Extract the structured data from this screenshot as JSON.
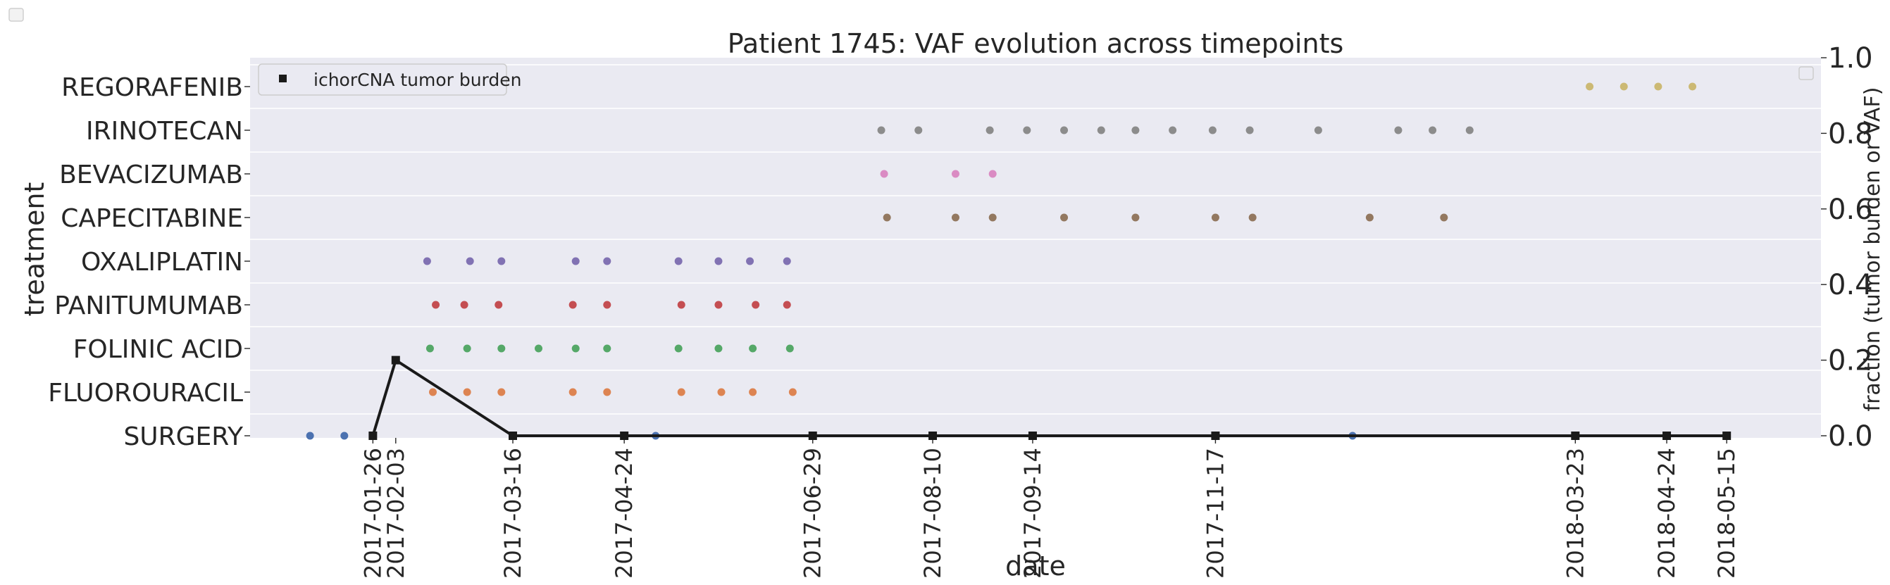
{
  "chart_data": {
    "type": "scatter",
    "title": "Patient 1745: VAF evolution across timepoints",
    "xlabel": "date",
    "ylabel": "treatment",
    "y2label": "fraction (tumor burden or VAF)",
    "grid": true,
    "legend_location": "top-left",
    "x_ticks": [
      "2017-01-26",
      "2017-02-03",
      "2017-03-16",
      "2017-04-24",
      "2017-06-29",
      "2017-08-10",
      "2017-09-14",
      "2017-11-17",
      "2018-03-23",
      "2018-04-24",
      "2018-05-15"
    ],
    "categories": [
      "SURGERY",
      "FLUOROURACIL",
      "FOLINIC ACID",
      "PANITUMUMAB",
      "OXALIPLATIN",
      "CAPECITABINE",
      "BEVACIZUMAB",
      "IRINOTECAN",
      "REGORAFENIB"
    ],
    "y2lim": [
      0.0,
      1.0
    ],
    "y2_ticks": [
      "0.0",
      "0.2",
      "0.4",
      "0.6",
      "0.8",
      "1.0"
    ],
    "series": [
      {
        "name": "ichorCNA tumor burden",
        "axis": "right",
        "marker": "square",
        "color": "#1a1a1a",
        "x": [
          "2017-01-26",
          "2017-02-03",
          "2017-03-16",
          "2017-04-24",
          "2017-06-29",
          "2017-08-10",
          "2017-09-14",
          "2017-11-17",
          "2018-03-23",
          "2018-04-24",
          "2018-05-15"
        ],
        "y": [
          0.0,
          0.2,
          0.0,
          0.0,
          0.0,
          0.0,
          0.0,
          0.0,
          0.0,
          0.0,
          0.0
        ]
      }
    ],
    "treatments": [
      {
        "category": "SURGERY",
        "color": "#4c72b0",
        "dates": [
          "2017-01-04",
          "2017-01-16",
          "2017-05-05",
          "2018-01-04"
        ]
      },
      {
        "category": "FLUOROURACIL",
        "color": "#dd8452",
        "dates": [
          "2017-02-16",
          "2017-02-28",
          "2017-03-12",
          "2017-04-06",
          "2017-04-18",
          "2017-05-14",
          "2017-05-28",
          "2017-06-08",
          "2017-06-22"
        ]
      },
      {
        "category": "FOLINIC ACID",
        "color": "#55a868",
        "dates": [
          "2017-02-15",
          "2017-02-28",
          "2017-03-12",
          "2017-03-25",
          "2017-04-07",
          "2017-04-18",
          "2017-05-13",
          "2017-05-27",
          "2017-06-08",
          "2017-06-21"
        ]
      },
      {
        "category": "PANITUMUMAB",
        "color": "#c44e52",
        "dates": [
          "2017-02-17",
          "2017-02-27",
          "2017-03-11",
          "2017-04-06",
          "2017-04-18",
          "2017-05-14",
          "2017-05-27",
          "2017-06-09",
          "2017-06-20"
        ]
      },
      {
        "category": "OXALIPLATIN",
        "color": "#8172b3",
        "dates": [
          "2017-02-14",
          "2017-03-01",
          "2017-03-12",
          "2017-04-07",
          "2017-04-18",
          "2017-05-13",
          "2017-05-27",
          "2017-06-07",
          "2017-06-20"
        ]
      },
      {
        "category": "CAPECITABINE",
        "color": "#937860",
        "dates": [
          "2017-07-25",
          "2017-08-18",
          "2017-08-31",
          "2017-09-25",
          "2017-10-20",
          "2017-11-17",
          "2017-11-30",
          "2018-01-10",
          "2018-02-05"
        ]
      },
      {
        "category": "BEVACIZUMAB",
        "color": "#da8bc3",
        "dates": [
          "2017-07-24",
          "2017-08-18",
          "2017-08-31"
        ]
      },
      {
        "category": "IRINOTECAN",
        "color": "#8c8c8c",
        "dates": [
          "2017-07-23",
          "2017-08-05",
          "2017-08-30",
          "2017-09-12",
          "2017-09-25",
          "2017-10-08",
          "2017-10-20",
          "2017-11-02",
          "2017-11-16",
          "2017-11-29",
          "2017-12-23",
          "2018-01-20",
          "2018-02-01",
          "2018-02-14"
        ]
      },
      {
        "category": "REGORAFENIB",
        "color": "#ccb974",
        "dates": [
          "2018-03-28",
          "2018-04-09",
          "2018-04-21",
          "2018-05-03"
        ]
      }
    ]
  }
}
